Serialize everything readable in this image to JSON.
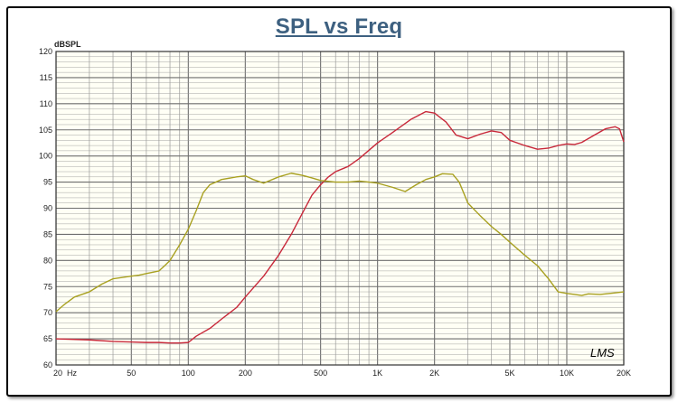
{
  "colors": {
    "title": "#3d6080",
    "plot_background": "#fffff5",
    "major_grid": "#6e6e6e",
    "minor_grid": "#9a9a9a",
    "tick_label": "#222222"
  },
  "chart_data": {
    "type": "line",
    "title": "SPL vs Freq",
    "ylabel": "dBSPL",
    "xlabel": "",
    "x_scale": "log",
    "xlim": [
      20,
      20000
    ],
    "ylim": [
      60,
      120
    ],
    "grid": true,
    "y_ticks": [
      60,
      65,
      70,
      75,
      80,
      85,
      90,
      95,
      100,
      105,
      110,
      115,
      120
    ],
    "x_tick_labels": [
      {
        "x": 20,
        "label": "20  Hz"
      },
      {
        "x": 50,
        "label": "50"
      },
      {
        "x": 100,
        "label": "100"
      },
      {
        "x": 200,
        "label": "200"
      },
      {
        "x": 500,
        "label": "500"
      },
      {
        "x": 1000,
        "label": "1K"
      },
      {
        "x": 2000,
        "label": "2K"
      },
      {
        "x": 5000,
        "label": "5K"
      },
      {
        "x": 10000,
        "label": "10K"
      },
      {
        "x": 20000,
        "label": "20K"
      }
    ],
    "watermark": "LMS",
    "series": [
      {
        "color": "#c8283a",
        "points": [
          [
            20,
            65.0
          ],
          [
            30,
            64.8
          ],
          [
            40,
            64.5
          ],
          [
            50,
            64.4
          ],
          [
            60,
            64.3
          ],
          [
            70,
            64.3
          ],
          [
            80,
            64.2
          ],
          [
            90,
            64.2
          ],
          [
            100,
            64.3
          ],
          [
            110,
            65.5
          ],
          [
            130,
            67.0
          ],
          [
            150,
            68.8
          ],
          [
            180,
            71.0
          ],
          [
            200,
            73.0
          ],
          [
            250,
            77.0
          ],
          [
            300,
            81.0
          ],
          [
            350,
            85.0
          ],
          [
            400,
            89.0
          ],
          [
            450,
            92.5
          ],
          [
            500,
            94.5
          ],
          [
            550,
            96.0
          ],
          [
            600,
            97.0
          ],
          [
            700,
            98.0
          ],
          [
            800,
            99.5
          ],
          [
            1000,
            102.5
          ],
          [
            1200,
            104.5
          ],
          [
            1500,
            107.0
          ],
          [
            1800,
            108.5
          ],
          [
            2000,
            108.2
          ],
          [
            2300,
            106.5
          ],
          [
            2600,
            104.0
          ],
          [
            3000,
            103.3
          ],
          [
            3500,
            104.2
          ],
          [
            4000,
            104.8
          ],
          [
            4500,
            104.5
          ],
          [
            5000,
            103.0
          ],
          [
            6000,
            102.0
          ],
          [
            7000,
            101.3
          ],
          [
            8000,
            101.5
          ],
          [
            9000,
            102.0
          ],
          [
            10000,
            102.3
          ],
          [
            11000,
            102.2
          ],
          [
            12000,
            102.6
          ],
          [
            14000,
            104.0
          ],
          [
            16000,
            105.2
          ],
          [
            18000,
            105.6
          ],
          [
            19000,
            105.2
          ],
          [
            20000,
            102.7
          ]
        ]
      },
      {
        "color": "#a8a020",
        "points": [
          [
            20,
            70.2
          ],
          [
            22,
            71.5
          ],
          [
            25,
            73.0
          ],
          [
            30,
            74.0
          ],
          [
            35,
            75.5
          ],
          [
            40,
            76.5
          ],
          [
            50,
            77.0
          ],
          [
            55,
            77.2
          ],
          [
            60,
            77.5
          ],
          [
            70,
            78.0
          ],
          [
            75,
            79.0
          ],
          [
            80,
            80.0
          ],
          [
            90,
            83.0
          ],
          [
            100,
            86.0
          ],
          [
            110,
            89.5
          ],
          [
            120,
            93.0
          ],
          [
            130,
            94.5
          ],
          [
            150,
            95.5
          ],
          [
            180,
            96.0
          ],
          [
            200,
            96.2
          ],
          [
            220,
            95.5
          ],
          [
            250,
            94.8
          ],
          [
            300,
            96.0
          ],
          [
            350,
            96.7
          ],
          [
            400,
            96.3
          ],
          [
            450,
            95.8
          ],
          [
            500,
            95.3
          ],
          [
            600,
            95.0
          ],
          [
            700,
            95.0
          ],
          [
            800,
            95.2
          ],
          [
            900,
            95.0
          ],
          [
            1000,
            94.8
          ],
          [
            1200,
            94.0
          ],
          [
            1400,
            93.2
          ],
          [
            1600,
            94.5
          ],
          [
            1800,
            95.5
          ],
          [
            2000,
            96.0
          ],
          [
            2200,
            96.6
          ],
          [
            2500,
            96.5
          ],
          [
            2700,
            95.0
          ],
          [
            3000,
            91.0
          ],
          [
            3500,
            88.5
          ],
          [
            4000,
            86.5
          ],
          [
            4500,
            85.0
          ],
          [
            5000,
            83.5
          ],
          [
            6000,
            81.0
          ],
          [
            7000,
            79.0
          ],
          [
            8000,
            76.5
          ],
          [
            9000,
            74.0
          ],
          [
            10000,
            73.7
          ],
          [
            11000,
            73.5
          ],
          [
            12000,
            73.3
          ],
          [
            13000,
            73.6
          ],
          [
            15000,
            73.5
          ],
          [
            18000,
            73.8
          ],
          [
            20000,
            74.0
          ]
        ]
      }
    ]
  }
}
